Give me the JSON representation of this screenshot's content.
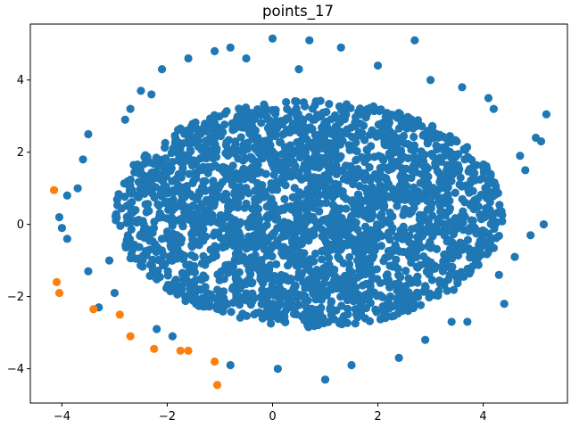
{
  "chart_data": {
    "type": "scatter",
    "title": "points_17",
    "xlabel": "",
    "ylabel": "",
    "xlim": [
      -4.6,
      5.6
    ],
    "ylim": [
      -4.95,
      5.55
    ],
    "xticks": [
      -4,
      -2,
      0,
      2,
      4
    ],
    "yticks": [
      -4,
      -2,
      0,
      2,
      4
    ],
    "grid": false,
    "legend": "none",
    "series": [
      {
        "color": "#1f77b4",
        "cloud": {
          "center_x": 0.7,
          "center_y": 0.3,
          "radius_x": 3.7,
          "radius_y": 3.15,
          "count": 2600
        },
        "points": [
          [
            -4.05,
            0.2
          ],
          [
            -4.0,
            -0.1
          ],
          [
            -3.9,
            0.8
          ],
          [
            -3.7,
            1.0
          ],
          [
            -3.6,
            1.8
          ],
          [
            -3.5,
            -1.3
          ],
          [
            -3.3,
            -2.3
          ],
          [
            -3.0,
            -1.9
          ],
          [
            -2.8,
            2.9
          ],
          [
            -2.7,
            3.2
          ],
          [
            -2.5,
            3.7
          ],
          [
            -2.2,
            -2.9
          ],
          [
            -2.1,
            4.3
          ],
          [
            -1.9,
            -3.1
          ],
          [
            -1.6,
            4.6
          ],
          [
            -1.1,
            4.8
          ],
          [
            -0.8,
            4.9
          ],
          [
            -0.8,
            -3.9
          ],
          [
            -0.5,
            4.6
          ],
          [
            0.0,
            5.15
          ],
          [
            0.1,
            -4.0
          ],
          [
            0.5,
            4.3
          ],
          [
            0.7,
            5.1
          ],
          [
            1.0,
            -4.3
          ],
          [
            1.3,
            4.9
          ],
          [
            1.5,
            -3.9
          ],
          [
            2.0,
            4.4
          ],
          [
            2.7,
            5.1
          ],
          [
            2.4,
            -3.7
          ],
          [
            3.0,
            4.0
          ],
          [
            3.4,
            -2.7
          ],
          [
            3.6,
            3.8
          ],
          [
            4.2,
            3.2
          ],
          [
            4.4,
            -2.2
          ],
          [
            4.8,
            1.5
          ],
          [
            5.0,
            2.4
          ],
          [
            5.2,
            3.05
          ],
          [
            5.1,
            2.3
          ],
          [
            5.15,
            0.0
          ],
          [
            4.9,
            -0.3
          ],
          [
            4.6,
            -0.9
          ],
          [
            4.3,
            -1.4
          ],
          [
            3.7,
            -2.7
          ],
          [
            2.9,
            -3.2
          ],
          [
            -3.1,
            -1.0
          ],
          [
            -3.9,
            -0.4
          ],
          [
            -3.5,
            2.5
          ],
          [
            -2.3,
            3.6
          ],
          [
            4.7,
            1.9
          ],
          [
            4.1,
            3.5
          ]
        ]
      },
      {
        "color": "#ff7f0e",
        "points": [
          [
            -4.15,
            0.95
          ],
          [
            -4.1,
            -1.6
          ],
          [
            -4.05,
            -1.9
          ],
          [
            -3.4,
            -2.35
          ],
          [
            -2.9,
            -2.5
          ],
          [
            -2.7,
            -3.1
          ],
          [
            -2.25,
            -3.45
          ],
          [
            -1.75,
            -3.5
          ],
          [
            -1.6,
            -3.5
          ],
          [
            -1.1,
            -3.8
          ],
          [
            -1.05,
            -4.45
          ]
        ]
      }
    ]
  }
}
